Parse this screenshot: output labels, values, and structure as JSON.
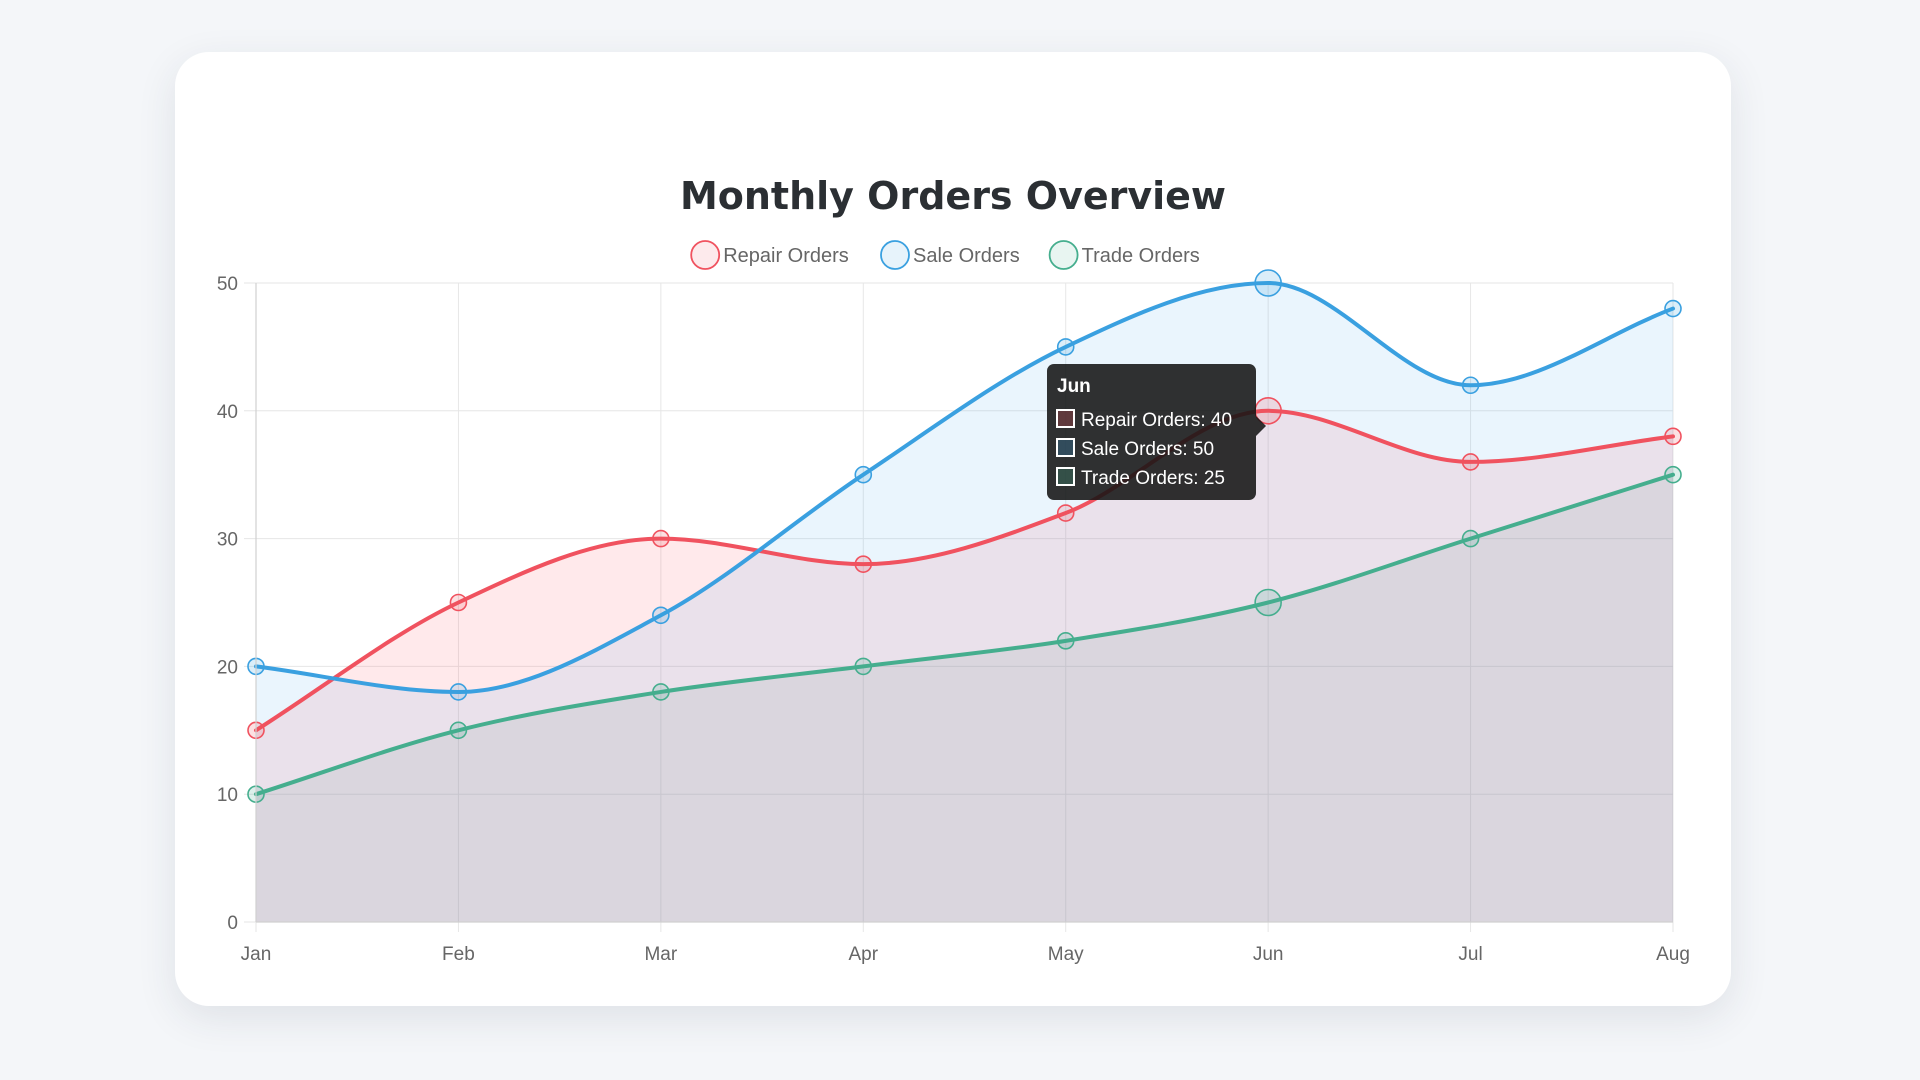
{
  "chart_data": {
    "type": "line",
    "title": "Monthly Orders Overview",
    "categories": [
      "Jan",
      "Feb",
      "Mar",
      "Apr",
      "May",
      "Jun",
      "Jul",
      "Aug"
    ],
    "ylim": [
      0,
      50
    ],
    "yticks": [
      0,
      10,
      20,
      30,
      40,
      50
    ],
    "grid": true,
    "legend_position": "top-center",
    "series": [
      {
        "name": "Repair Orders",
        "values": [
          15,
          25,
          30,
          28,
          32,
          40,
          36,
          38
        ],
        "color": "#f0525f",
        "fill": "rgba(255, 99, 112, 0.14)"
      },
      {
        "name": "Sale Orders",
        "values": [
          20,
          18,
          24,
          35,
          45,
          50,
          42,
          48
        ],
        "color": "#3aa0e0",
        "fill": "rgba(80, 170, 240, 0.12)"
      },
      {
        "name": "Trade Orders",
        "values": [
          10,
          15,
          18,
          20,
          22,
          25,
          30,
          35
        ],
        "color": "#45ae8e",
        "fill": "rgba(120, 150, 150, 0.14)"
      }
    ],
    "tooltip": {
      "category_index": 5,
      "title": "Jun",
      "lines": [
        "Repair Orders: 40",
        "Sale Orders: 50",
        "Trade Orders: 25"
      ]
    }
  }
}
